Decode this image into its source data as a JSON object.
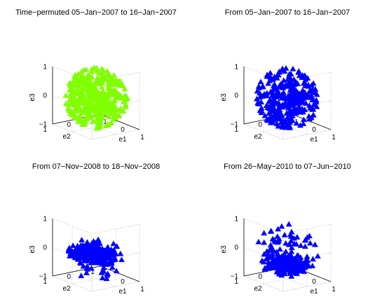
{
  "figure": {
    "background": "#ffffff",
    "panel_count": 4
  },
  "chart_data": [
    {
      "type": "scatter",
      "title": "Time−permuted 05−Jan−2007 to 16−Jan−2007",
      "marker": "triangle",
      "color": "#80ff00",
      "xlabel": "e1",
      "ylabel": "e2",
      "zlabel": "e3",
      "xlim": [
        -1,
        1
      ],
      "ylim": [
        -1,
        1
      ],
      "zlim": [
        -1,
        1
      ],
      "xticks": [
        "−1",
        "0",
        "1"
      ],
      "yticks": [
        "−1",
        "0",
        "1"
      ],
      "zticks": [
        "−1",
        "0",
        "1"
      ],
      "grid": true,
      "distribution": "dense roughly spherical cloud of points centered at origin, radius about 0.9",
      "cloud": {
        "center": [
          0,
          0,
          0.05
        ],
        "spread": [
          0.6,
          0.6,
          0.55
        ],
        "count": 420,
        "seed": 11
      }
    },
    {
      "type": "scatter",
      "title": "From 05−Jan−2007 to 16−Jan−2007",
      "marker": "triangle",
      "color": "#0000ff",
      "xlabel": "e1",
      "ylabel": "e2",
      "zlabel": "e3",
      "xlim": [
        -1,
        1
      ],
      "ylim": [
        -1,
        1
      ],
      "zlim": [
        -1,
        1
      ],
      "xticks": [
        "−1",
        "0",
        "1"
      ],
      "yticks": [
        "−1",
        "0",
        "1"
      ],
      "zticks": [
        "−1",
        "0",
        "1"
      ],
      "grid": true,
      "distribution": "roughly spherical cloud of points centered at origin, somewhat sparser than permuted version",
      "cloud": {
        "center": [
          0,
          0,
          0.0
        ],
        "spread": [
          0.6,
          0.6,
          0.55
        ],
        "count": 330,
        "seed": 23
      }
    },
    {
      "type": "scatter",
      "title": "From 07−Nov−2008 to 18−Nov−2008",
      "marker": "triangle",
      "color": "#0000ff",
      "xlabel": "e1",
      "ylabel": "e2",
      "zlabel": "e3",
      "xlim": [
        -1,
        1
      ],
      "ylim": [
        -1,
        1
      ],
      "zlim": [
        -1,
        1
      ],
      "xticks": [
        "−1",
        "0",
        "1"
      ],
      "yticks": [
        "−1",
        "0",
        "1"
      ],
      "zticks": [
        "−1",
        "0",
        "1"
      ],
      "grid": true,
      "distribution": "dense flattened cluster near e3=0 with a scattered tail toward e3=-1",
      "cloud": {
        "center": [
          0.15,
          0.25,
          -0.05
        ],
        "spread": [
          0.35,
          0.35,
          0.12
        ],
        "count": 300,
        "seed": 37
      },
      "tail": {
        "center": [
          -0.2,
          -0.3,
          -0.45
        ],
        "spread": [
          0.45,
          0.35,
          0.35
        ],
        "count": 45,
        "seed": 41
      }
    },
    {
      "type": "scatter",
      "title": "From 26−May−2010 to 07−Jun−2010",
      "marker": "triangle",
      "color": "#0000ff",
      "xlabel": "e1",
      "ylabel": "e2",
      "zlabel": "e3",
      "xlim": [
        -1,
        1
      ],
      "ylim": [
        -1,
        1
      ],
      "zlim": [
        -1,
        1
      ],
      "xticks": [
        "−1",
        "0",
        "1"
      ],
      "yticks": [
        "−1",
        "0",
        "1"
      ],
      "zticks": [
        "−1",
        "0",
        "1"
      ],
      "grid": true,
      "distribution": "dense cluster near e3=-0.4 with a sparser spread of points rising toward e3=+1",
      "cloud": {
        "center": [
          0.1,
          0.1,
          -0.45
        ],
        "spread": [
          0.35,
          0.3,
          0.12
        ],
        "count": 300,
        "seed": 53
      },
      "tail": {
        "center": [
          0.0,
          0.0,
          0.2
        ],
        "spread": [
          0.55,
          0.45,
          0.35
        ],
        "count": 60,
        "seed": 59
      }
    }
  ]
}
